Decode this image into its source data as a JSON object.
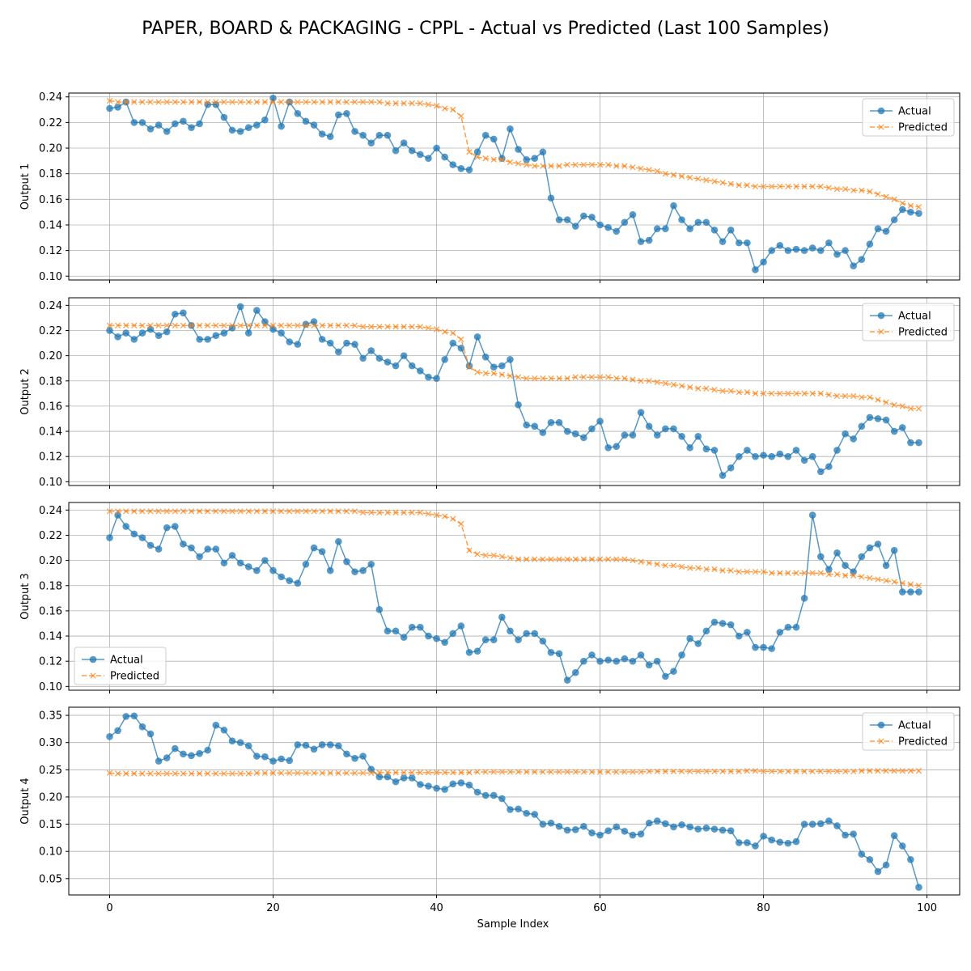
{
  "chart_data": {
    "type": "line",
    "title": "PAPER, BOARD & PACKAGING - CPPL - Actual vs Predicted (Last 100 Samples)",
    "xlabel": "Sample Index",
    "xlim": [
      -5,
      104
    ],
    "xticks": [
      0,
      20,
      40,
      60,
      80,
      100
    ],
    "grid": true,
    "colors": {
      "actual": "#1f77b4",
      "predicted": "#ff7f0e"
    },
    "legend_labels": [
      "Actual",
      "Predicted"
    ],
    "subplots": [
      {
        "ylabel": "Output 1",
        "ylim": [
          0.097,
          0.243
        ],
        "yticks": [
          0.1,
          0.12,
          0.14,
          0.16,
          0.18,
          0.2,
          0.22,
          0.24
        ],
        "ytick_decimals": 2,
        "legend": "top-right",
        "series": [
          {
            "name": "Actual",
            "values": [
              0.231,
              0.232,
              0.236,
              0.22,
              0.22,
              0.215,
              0.218,
              0.213,
              0.219,
              0.221,
              0.216,
              0.219,
              0.234,
              0.234,
              0.224,
              0.214,
              0.213,
              0.216,
              0.218,
              0.222,
              0.239,
              0.217,
              0.236,
              0.227,
              0.221,
              0.218,
              0.211,
              0.209,
              0.226,
              0.227,
              0.213,
              0.21,
              0.204,
              0.21,
              0.21,
              0.198,
              0.204,
              0.198,
              0.195,
              0.192,
              0.2,
              0.193,
              0.187,
              0.184,
              0.183,
              0.197,
              0.21,
              0.207,
              0.192,
              0.215,
              0.199,
              0.191,
              0.192,
              0.197,
              0.161,
              0.144,
              0.144,
              0.139,
              0.147,
              0.146,
              0.14,
              0.138,
              0.135,
              0.142,
              0.148,
              0.127,
              0.128,
              0.137,
              0.137,
              0.155,
              0.144,
              0.137,
              0.142,
              0.142,
              0.136,
              0.127,
              0.136,
              0.126,
              0.126,
              0.105,
              0.111,
              0.12,
              0.124,
              0.12,
              0.121,
              0.12,
              0.122,
              0.12,
              0.126,
              0.117,
              0.12,
              0.108,
              0.113,
              0.125,
              0.137,
              0.135,
              0.144,
              0.152,
              0.15,
              0.149
            ]
          },
          {
            "name": "Predicted",
            "values": [
              0.237,
              0.236,
              0.236,
              0.236,
              0.236,
              0.236,
              0.236,
              0.236,
              0.236,
              0.236,
              0.236,
              0.236,
              0.236,
              0.236,
              0.236,
              0.236,
              0.236,
              0.236,
              0.236,
              0.236,
              0.236,
              0.236,
              0.236,
              0.236,
              0.236,
              0.236,
              0.236,
              0.236,
              0.236,
              0.236,
              0.236,
              0.236,
              0.236,
              0.236,
              0.235,
              0.235,
              0.235,
              0.235,
              0.235,
              0.234,
              0.233,
              0.231,
              0.23,
              0.225,
              0.197,
              0.193,
              0.192,
              0.191,
              0.191,
              0.189,
              0.188,
              0.187,
              0.186,
              0.186,
              0.186,
              0.186,
              0.187,
              0.187,
              0.187,
              0.187,
              0.187,
              0.187,
              0.186,
              0.186,
              0.185,
              0.184,
              0.183,
              0.182,
              0.18,
              0.179,
              0.178,
              0.177,
              0.176,
              0.175,
              0.174,
              0.173,
              0.172,
              0.171,
              0.171,
              0.17,
              0.17,
              0.17,
              0.17,
              0.17,
              0.17,
              0.17,
              0.17,
              0.17,
              0.169,
              0.168,
              0.168,
              0.167,
              0.167,
              0.166,
              0.164,
              0.162,
              0.16,
              0.157,
              0.155,
              0.154
            ]
          }
        ]
      },
      {
        "ylabel": "Output 2",
        "ylim": [
          0.097,
          0.246
        ],
        "yticks": [
          0.1,
          0.12,
          0.14,
          0.16,
          0.18,
          0.2,
          0.22,
          0.24
        ],
        "ytick_decimals": 2,
        "legend": "top-right",
        "series": [
          {
            "name": "Actual",
            "values": [
              0.22,
              0.215,
              0.218,
              0.213,
              0.218,
              0.221,
              0.216,
              0.219,
              0.233,
              0.234,
              0.224,
              0.213,
              0.213,
              0.216,
              0.218,
              0.222,
              0.239,
              0.218,
              0.236,
              0.227,
              0.221,
              0.218,
              0.211,
              0.209,
              0.225,
              0.227,
              0.213,
              0.21,
              0.203,
              0.21,
              0.209,
              0.198,
              0.204,
              0.198,
              0.195,
              0.192,
              0.2,
              0.192,
              0.188,
              0.183,
              0.182,
              0.197,
              0.21,
              0.206,
              0.192,
              0.215,
              0.199,
              0.191,
              0.192,
              0.197,
              0.161,
              0.145,
              0.144,
              0.139,
              0.147,
              0.147,
              0.14,
              0.138,
              0.135,
              0.142,
              0.148,
              0.127,
              0.128,
              0.137,
              0.137,
              0.155,
              0.144,
              0.137,
              0.142,
              0.142,
              0.136,
              0.127,
              0.136,
              0.126,
              0.125,
              0.105,
              0.111,
              0.12,
              0.125,
              0.12,
              0.121,
              0.12,
              0.122,
              0.12,
              0.125,
              0.117,
              0.12,
              0.108,
              0.112,
              0.125,
              0.138,
              0.134,
              0.144,
              0.151,
              0.15,
              0.149,
              0.14,
              0.143,
              0.131,
              0.131
            ]
          },
          {
            "name": "Predicted",
            "values": [
              0.224,
              0.224,
              0.224,
              0.224,
              0.224,
              0.224,
              0.224,
              0.224,
              0.224,
              0.224,
              0.224,
              0.224,
              0.224,
              0.224,
              0.224,
              0.224,
              0.224,
              0.224,
              0.224,
              0.224,
              0.224,
              0.224,
              0.224,
              0.224,
              0.224,
              0.224,
              0.224,
              0.224,
              0.224,
              0.224,
              0.224,
              0.223,
              0.223,
              0.223,
              0.223,
              0.223,
              0.223,
              0.223,
              0.223,
              0.222,
              0.221,
              0.219,
              0.218,
              0.213,
              0.191,
              0.187,
              0.186,
              0.186,
              0.185,
              0.184,
              0.183,
              0.182,
              0.182,
              0.182,
              0.182,
              0.182,
              0.182,
              0.183,
              0.183,
              0.183,
              0.183,
              0.183,
              0.182,
              0.182,
              0.181,
              0.18,
              0.18,
              0.179,
              0.178,
              0.177,
              0.176,
              0.175,
              0.174,
              0.174,
              0.173,
              0.172,
              0.172,
              0.171,
              0.171,
              0.17,
              0.17,
              0.17,
              0.17,
              0.17,
              0.17,
              0.17,
              0.17,
              0.17,
              0.169,
              0.168,
              0.168,
              0.168,
              0.167,
              0.167,
              0.165,
              0.163,
              0.161,
              0.16,
              0.158,
              0.158
            ]
          }
        ]
      },
      {
        "ylabel": "Output 3",
        "ylim": [
          0.097,
          0.246
        ],
        "yticks": [
          0.1,
          0.12,
          0.14,
          0.16,
          0.18,
          0.2,
          0.22,
          0.24
        ],
        "ytick_decimals": 2,
        "legend": "bottom-left",
        "series": [
          {
            "name": "Actual",
            "values": [
              0.218,
              0.236,
              0.227,
              0.221,
              0.218,
              0.212,
              0.209,
              0.226,
              0.227,
              0.213,
              0.21,
              0.203,
              0.209,
              0.209,
              0.198,
              0.204,
              0.198,
              0.195,
              0.192,
              0.2,
              0.192,
              0.187,
              0.184,
              0.182,
              0.197,
              0.21,
              0.207,
              0.192,
              0.215,
              0.199,
              0.191,
              0.192,
              0.197,
              0.161,
              0.144,
              0.144,
              0.139,
              0.147,
              0.147,
              0.14,
              0.138,
              0.135,
              0.142,
              0.148,
              0.127,
              0.128,
              0.137,
              0.137,
              0.155,
              0.144,
              0.137,
              0.142,
              0.142,
              0.136,
              0.127,
              0.126,
              0.105,
              0.111,
              0.12,
              0.125,
              0.12,
              0.121,
              0.12,
              0.122,
              0.12,
              0.125,
              0.117,
              0.12,
              0.108,
              0.112,
              0.125,
              0.138,
              0.134,
              0.144,
              0.151,
              0.15,
              0.149,
              0.14,
              0.143,
              0.131,
              0.131,
              0.13,
              0.143,
              0.147,
              0.147,
              0.17,
              0.236,
              0.203,
              0.193,
              0.206,
              0.196,
              0.191,
              0.203,
              0.21,
              0.213,
              0.196,
              0.208,
              0.175,
              0.175,
              0.175
            ]
          },
          {
            "name": "Predicted",
            "values": [
              0.239,
              0.239,
              0.239,
              0.239,
              0.239,
              0.239,
              0.239,
              0.239,
              0.239,
              0.239,
              0.239,
              0.239,
              0.239,
              0.239,
              0.239,
              0.239,
              0.239,
              0.239,
              0.239,
              0.239,
              0.239,
              0.239,
              0.239,
              0.239,
              0.239,
              0.239,
              0.239,
              0.239,
              0.239,
              0.239,
              0.239,
              0.238,
              0.238,
              0.238,
              0.238,
              0.238,
              0.238,
              0.238,
              0.238,
              0.237,
              0.236,
              0.235,
              0.233,
              0.229,
              0.208,
              0.205,
              0.204,
              0.204,
              0.203,
              0.202,
              0.201,
              0.201,
              0.201,
              0.201,
              0.201,
              0.201,
              0.201,
              0.201,
              0.201,
              0.201,
              0.201,
              0.201,
              0.201,
              0.201,
              0.2,
              0.199,
              0.198,
              0.197,
              0.196,
              0.196,
              0.195,
              0.194,
              0.194,
              0.193,
              0.193,
              0.192,
              0.192,
              0.191,
              0.191,
              0.191,
              0.191,
              0.19,
              0.19,
              0.19,
              0.19,
              0.19,
              0.19,
              0.19,
              0.189,
              0.189,
              0.188,
              0.188,
              0.187,
              0.186,
              0.185,
              0.184,
              0.183,
              0.182,
              0.181,
              0.18
            ]
          }
        ]
      },
      {
        "ylabel": "Output 4",
        "ylim": [
          0.02,
          0.365
        ],
        "yticks": [
          0.05,
          0.1,
          0.15,
          0.2,
          0.25,
          0.3,
          0.35
        ],
        "ytick_decimals": 2,
        "legend": "top-right",
        "series": [
          {
            "name": "Actual",
            "values": [
              0.311,
              0.322,
              0.348,
              0.349,
              0.329,
              0.316,
              0.266,
              0.272,
              0.289,
              0.279,
              0.276,
              0.28,
              0.286,
              0.332,
              0.323,
              0.303,
              0.3,
              0.294,
              0.275,
              0.274,
              0.266,
              0.27,
              0.267,
              0.296,
              0.295,
              0.288,
              0.296,
              0.296,
              0.294,
              0.279,
              0.271,
              0.275,
              0.251,
              0.237,
              0.237,
              0.228,
              0.235,
              0.235,
              0.223,
              0.22,
              0.216,
              0.214,
              0.224,
              0.226,
              0.222,
              0.209,
              0.203,
              0.203,
              0.197,
              0.177,
              0.178,
              0.17,
              0.168,
              0.15,
              0.152,
              0.146,
              0.139,
              0.14,
              0.146,
              0.134,
              0.13,
              0.138,
              0.145,
              0.137,
              0.13,
              0.132,
              0.152,
              0.156,
              0.151,
              0.145,
              0.149,
              0.145,
              0.141,
              0.143,
              0.141,
              0.139,
              0.138,
              0.116,
              0.116,
              0.11,
              0.128,
              0.121,
              0.117,
              0.115,
              0.118,
              0.15,
              0.15,
              0.151,
              0.156,
              0.147,
              0.13,
              0.132,
              0.095,
              0.085,
              0.063,
              0.075,
              0.129,
              0.11,
              0.085,
              0.034
            ]
          },
          {
            "name": "Predicted",
            "values": [
              0.244,
              0.243,
              0.243,
              0.243,
              0.243,
              0.243,
              0.243,
              0.243,
              0.243,
              0.243,
              0.243,
              0.243,
              0.243,
              0.243,
              0.243,
              0.243,
              0.243,
              0.243,
              0.244,
              0.244,
              0.244,
              0.244,
              0.244,
              0.244,
              0.244,
              0.244,
              0.244,
              0.244,
              0.244,
              0.244,
              0.244,
              0.244,
              0.244,
              0.245,
              0.245,
              0.245,
              0.245,
              0.245,
              0.245,
              0.245,
              0.245,
              0.245,
              0.245,
              0.245,
              0.245,
              0.246,
              0.246,
              0.246,
              0.246,
              0.246,
              0.246,
              0.246,
              0.246,
              0.246,
              0.246,
              0.246,
              0.246,
              0.246,
              0.246,
              0.246,
              0.246,
              0.246,
              0.246,
              0.246,
              0.246,
              0.246,
              0.247,
              0.247,
              0.247,
              0.247,
              0.247,
              0.247,
              0.247,
              0.247,
              0.247,
              0.247,
              0.247,
              0.247,
              0.248,
              0.248,
              0.247,
              0.247,
              0.247,
              0.247,
              0.247,
              0.247,
              0.247,
              0.247,
              0.247,
              0.247,
              0.247,
              0.247,
              0.248,
              0.248,
              0.248,
              0.248,
              0.248,
              0.248,
              0.248,
              0.248
            ]
          }
        ]
      }
    ]
  }
}
